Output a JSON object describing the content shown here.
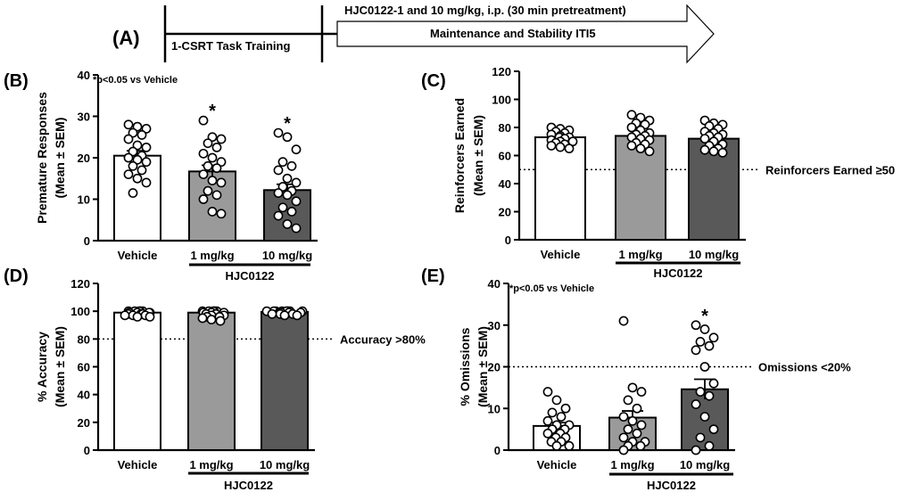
{
  "timeline": {
    "label": "(A)",
    "training_label": "1-CSRT Task Training",
    "arrow_line1": "HJC0122-1 and 10 mg/kg, i.p. (30 min pretreatment)",
    "arrow_line2": "Maintenance and Stability ITI5"
  },
  "chart_data": [
    {
      "id": "B",
      "type": "bar",
      "panel_label": "(B)",
      "ylabel_line1": "Premature Responses",
      "ylabel_line2": "(Mean ± SEM)",
      "ylim": [
        0,
        40
      ],
      "yticks": [
        0,
        10,
        20,
        30,
        40
      ],
      "categories": [
        "Vehicle",
        "1 mg/kg",
        "10 mg/kg"
      ],
      "values": [
        20.5,
        16.7,
        12.2
      ],
      "sem": [
        1.2,
        1.5,
        1.4
      ],
      "fills": [
        "#ffffff",
        "#9a9a9a",
        "#595959"
      ],
      "group_label": "HJC0122",
      "significance_note": "*p<0.05 vs Vehicle",
      "stars": [
        "",
        "*",
        "*"
      ],
      "points": [
        [
          28,
          27.5,
          27,
          26,
          25.5,
          24.5,
          23,
          22.5,
          21.5,
          20.5,
          20,
          19.5,
          19,
          18,
          17,
          16,
          15,
          14,
          11.5
        ],
        [
          29,
          25,
          24.5,
          23.5,
          22.5,
          21,
          20,
          19,
          18,
          17.5,
          16,
          14.5,
          14,
          12,
          11,
          10,
          7,
          6.5
        ],
        [
          26,
          25,
          22,
          19,
          18,
          17,
          15,
          14,
          13,
          12,
          11.5,
          11,
          9.5,
          8,
          7,
          6,
          4,
          3
        ]
      ]
    },
    {
      "id": "C",
      "type": "bar",
      "panel_label": "(C)",
      "ylabel_line1": "Reinforcers Earned",
      "ylabel_line2": "(Mean ± SEM)",
      "ylim": [
        0,
        120
      ],
      "yticks": [
        0,
        20,
        40,
        60,
        80,
        100,
        120
      ],
      "categories": [
        "Vehicle",
        "1 mg/kg",
        "10 mg/kg"
      ],
      "values": [
        73,
        74,
        72
      ],
      "sem": [
        1.3,
        1.8,
        1.8
      ],
      "fills": [
        "#ffffff",
        "#9a9a9a",
        "#595959"
      ],
      "group_label": "HJC0122",
      "reference_line": {
        "value": 50,
        "label": "Reinforcers Earned ≥50"
      },
      "points": [
        [
          80,
          79,
          78,
          77,
          76,
          75,
          74,
          73,
          73,
          72,
          71,
          70,
          70,
          69,
          68,
          67,
          66,
          65
        ],
        [
          89,
          87,
          85,
          83,
          82,
          80,
          78,
          76,
          75,
          74,
          73,
          72,
          71,
          69,
          68,
          67,
          65,
          63
        ],
        [
          85,
          83,
          82,
          81,
          79,
          77,
          76,
          75,
          74,
          73,
          72,
          70,
          68,
          67,
          65,
          64,
          63,
          62
        ]
      ]
    },
    {
      "id": "D",
      "type": "bar",
      "panel_label": "(D)",
      "ylabel_line1": "% Accuracy",
      "ylabel_line2": "(Mean ± SEM)",
      "ylim": [
        0,
        120
      ],
      "yticks": [
        0,
        20,
        40,
        60,
        80,
        100,
        120
      ],
      "categories": [
        "Vehicle",
        "1 mg/kg",
        "10 mg/kg"
      ],
      "values": [
        99,
        99,
        99.5
      ],
      "sem": [
        0.4,
        0.5,
        0.3
      ],
      "fills": [
        "#ffffff",
        "#9a9a9a",
        "#595959"
      ],
      "group_label": "HJC0122",
      "reference_line": {
        "value": 80,
        "label": "Accuracy >80%"
      },
      "points": [
        [
          100,
          100,
          100,
          100,
          100,
          100,
          99,
          99,
          99,
          99,
          98,
          98,
          98,
          97,
          97,
          97,
          96,
          96
        ],
        [
          100,
          100,
          100,
          100,
          100,
          100,
          99,
          99,
          99,
          98,
          98,
          97,
          97,
          96,
          96,
          95,
          94,
          93
        ],
        [
          100,
          100,
          100,
          100,
          100,
          100,
          100,
          100,
          100,
          99,
          99,
          99,
          99,
          98,
          98,
          98,
          97,
          97
        ]
      ]
    },
    {
      "id": "E",
      "type": "bar",
      "panel_label": "(E)",
      "ylabel_line1": "% Omissions",
      "ylabel_line2": "(Mean ± SEM)",
      "ylim": [
        0,
        40
      ],
      "yticks": [
        0,
        10,
        20,
        30,
        40
      ],
      "categories": [
        "Vehicle",
        "1 mg/kg",
        "10 mg/kg"
      ],
      "values": [
        5.8,
        7.8,
        14.6
      ],
      "sem": [
        0.8,
        1.6,
        2.4
      ],
      "fills": [
        "#ffffff",
        "#9a9a9a",
        "#595959"
      ],
      "group_label": "HJC0122",
      "significance_note": "*p<0.05 vs  Vehicle",
      "stars": [
        "",
        "",
        "*"
      ],
      "reference_line": {
        "value": 20,
        "label": "Omissions <20%"
      },
      "points": [
        [
          14,
          12,
          10,
          9,
          8,
          7,
          6,
          6,
          5,
          5,
          4,
          4,
          3,
          3,
          2,
          2,
          1,
          1
        ],
        [
          31,
          15,
          14,
          12,
          10,
          8,
          7,
          6,
          5,
          4,
          3,
          2,
          2,
          1,
          1,
          0
        ],
        [
          30,
          29,
          27,
          26,
          25,
          24,
          20,
          16,
          14,
          13,
          11,
          8,
          5,
          3,
          1,
          0
        ]
      ]
    }
  ]
}
